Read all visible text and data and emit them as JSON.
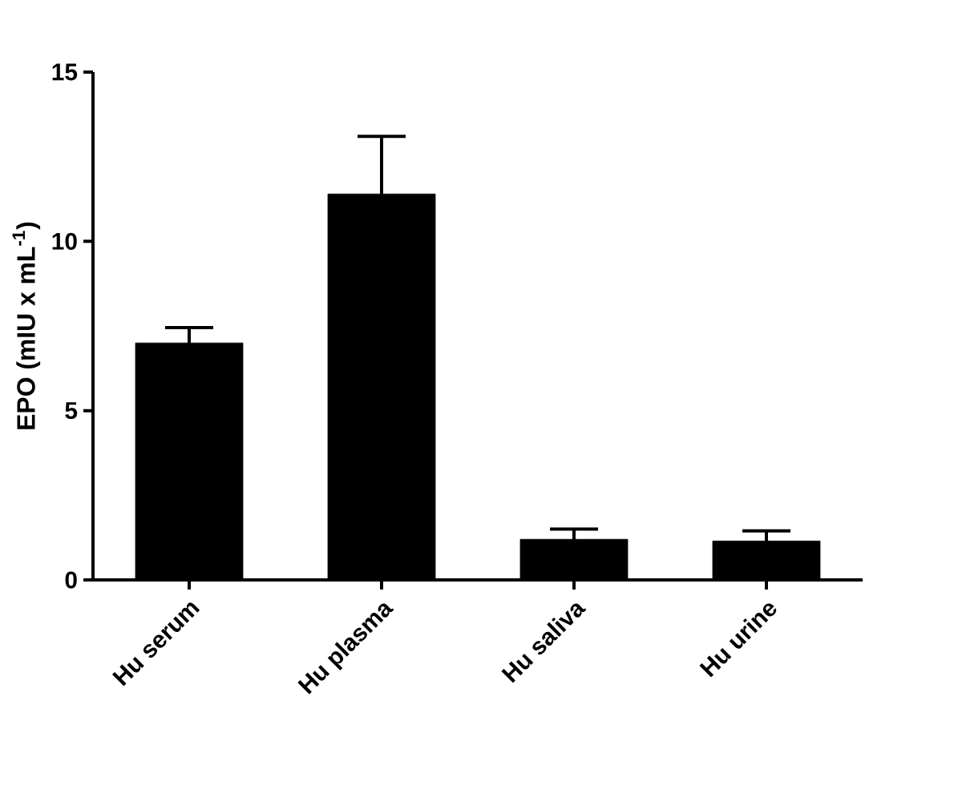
{
  "chart_data": {
    "type": "bar",
    "ylabel": "EPO (mIU x mL$^{-1}$)",
    "categories": [
      "Hu serum",
      "Hu plasma",
      "Hu saliva",
      "Hu urine"
    ],
    "values": [
      7.0,
      11.4,
      1.2,
      1.15
    ],
    "errors": [
      0.45,
      1.7,
      0.3,
      0.3
    ],
    "color": "#000000",
    "ylim": [
      0,
      15
    ],
    "yticks": [
      0,
      5,
      10,
      15
    ]
  }
}
